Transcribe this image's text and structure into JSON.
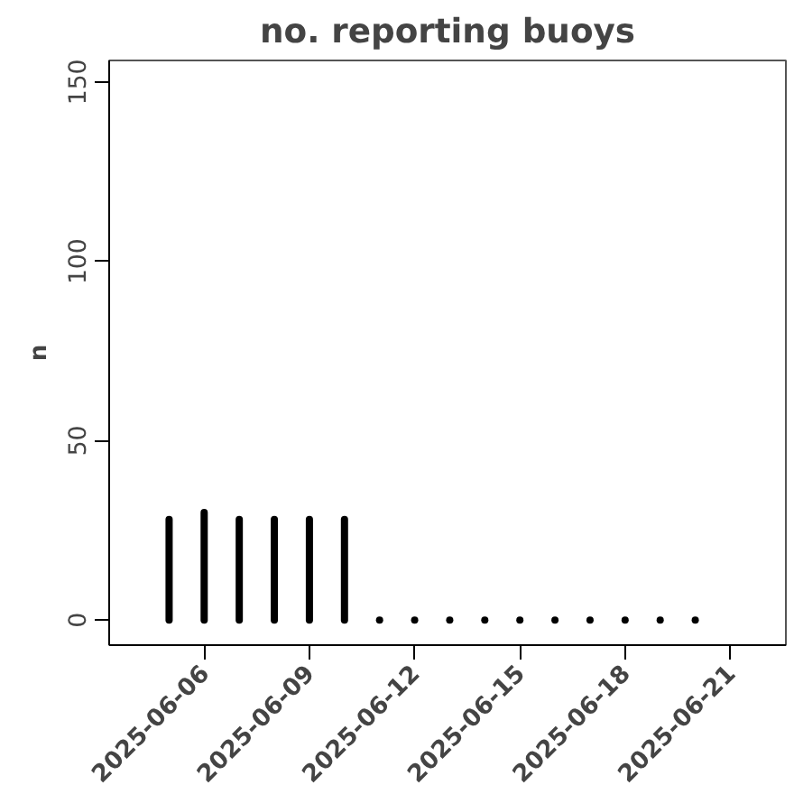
{
  "chart_data": {
    "type": "bar",
    "title": "no. reporting buoys",
    "ylabel": "n",
    "x": [
      "2025-06-05",
      "2025-06-06",
      "2025-06-07",
      "2025-06-08",
      "2025-06-09",
      "2025-06-10",
      "2025-06-11",
      "2025-06-12",
      "2025-06-13",
      "2025-06-14",
      "2025-06-15",
      "2025-06-16",
      "2025-06-17",
      "2025-06-18",
      "2025-06-19",
      "2025-06-20"
    ],
    "values": [
      28,
      30,
      28,
      28,
      28,
      28,
      0,
      0,
      0,
      0,
      0,
      0,
      0,
      0,
      0,
      0
    ],
    "color": "#000000",
    "xlim": [
      "2025-06-03T07:00",
      "2025-06-22T14:00"
    ],
    "xticks": [
      "2025-06-06",
      "2025-06-09",
      "2025-06-12",
      "2025-06-15",
      "2025-06-18",
      "2025-06-21"
    ],
    "ylim": [
      -7,
      156
    ],
    "yticks": [
      0,
      50,
      100,
      150
    ],
    "grid": false
  }
}
